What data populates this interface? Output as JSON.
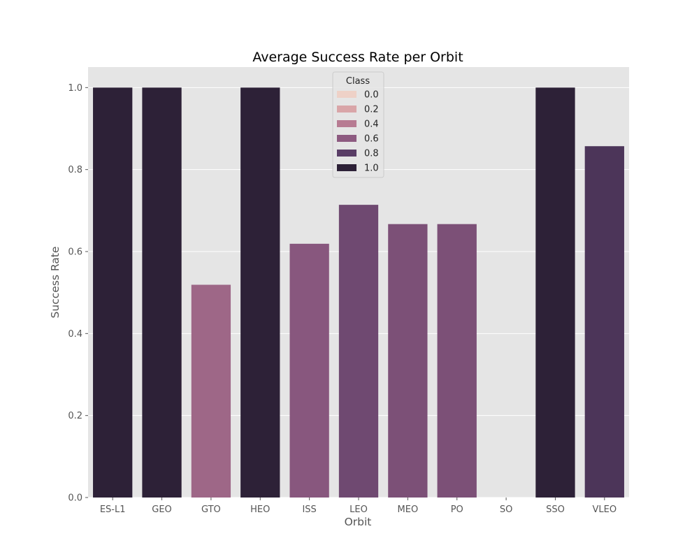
{
  "chart_data": {
    "type": "bar",
    "title": "Average Success Rate per Orbit",
    "xlabel": "Orbit",
    "ylabel": "Success Rate",
    "ylim": [
      0,
      1.05
    ],
    "yticks": [
      "0.0",
      "0.2",
      "0.4",
      "0.6",
      "0.8",
      "1.0"
    ],
    "grid": true,
    "categories": [
      "ES-L1",
      "GEO",
      "GTO",
      "HEO",
      "ISS",
      "LEO",
      "MEO",
      "PO",
      "SO",
      "SSO",
      "VLEO"
    ],
    "values": [
      1.0,
      1.0,
      0.519,
      1.0,
      0.619,
      0.714,
      0.667,
      0.667,
      0.0,
      1.0,
      0.857
    ],
    "hue_key": "Class",
    "legend": {
      "title": "Class",
      "placement": "top-center",
      "entries": [
        {
          "label": "0.0",
          "color": "#eed1c7"
        },
        {
          "label": "0.2",
          "color": "#d9a5a8"
        },
        {
          "label": "0.4",
          "color": "#b77b92"
        },
        {
          "label": "0.6",
          "color": "#8d5a80"
        },
        {
          "label": "0.8",
          "color": "#593d66"
        },
        {
          "label": "1.0",
          "color": "#2d2137"
        }
      ]
    },
    "colors": {
      "background": "#e5e5e5",
      "grid": "#ffffff",
      "palette_stops": [
        [
          0.0,
          "#eed1c7"
        ],
        [
          0.2,
          "#d9a5a8"
        ],
        [
          0.4,
          "#b77b92"
        ],
        [
          0.6,
          "#8d5a80"
        ],
        [
          0.8,
          "#593d66"
        ],
        [
          1.0,
          "#2d2137"
        ]
      ]
    }
  }
}
